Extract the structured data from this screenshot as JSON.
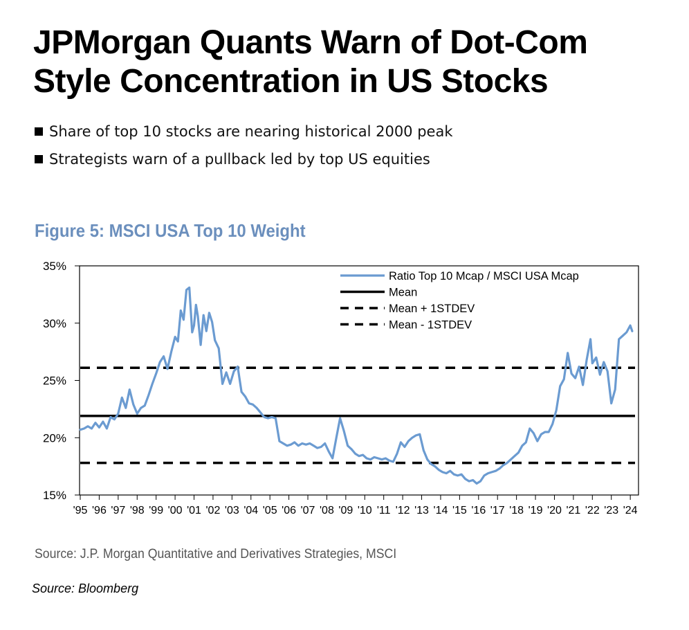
{
  "headline": "JPMorgan Quants Warn of Dot-Com Style Concentration in US Stocks",
  "bullets": [
    "Share of top 10 stocks are nearing historical 2000 peak",
    "Strategists warn of a pullback led by top US equities"
  ],
  "figure_source": "Source: J.P. Morgan Quantitative and Derivatives Strategies, MSCI",
  "credit": "Source: Bloomberg",
  "colors": {
    "series": "#6b9bd1",
    "title": "#6b8fbd",
    "lines": "#000000"
  },
  "chart_data": {
    "type": "line",
    "title": "Figure 5: MSCI USA Top 10 Weight",
    "xlabel": "",
    "ylabel": "",
    "x_ticks": [
      "'95",
      "'96",
      "'97",
      "'98",
      "'99",
      "'00",
      "'01",
      "'02",
      "'03",
      "'04",
      "'05",
      "'06",
      "'07",
      "'08",
      "'09",
      "'10",
      "'11",
      "'12",
      "'13",
      "'14",
      "'15",
      "'16",
      "'17",
      "'18",
      "'19",
      "'20",
      "'21",
      "'22",
      "'23",
      "'24"
    ],
    "xlim": [
      1995.0,
      2024.25
    ],
    "y_ticks": [
      15,
      20,
      25,
      30,
      35
    ],
    "y_tick_labels": [
      "15%",
      "20%",
      "25%",
      "30%",
      "35%"
    ],
    "ylim": [
      15,
      35
    ],
    "grid": false,
    "legend": "top-right",
    "series": [
      {
        "name": "Ratio Top 10 Mcap / MSCI USA Mcap",
        "style": "solid",
        "x": [
          1995.0,
          1995.2,
          1995.4,
          1995.6,
          1995.8,
          1996.0,
          1996.2,
          1996.4,
          1996.6,
          1996.8,
          1997.0,
          1997.2,
          1997.4,
          1997.6,
          1997.8,
          1998.0,
          1998.2,
          1998.4,
          1998.6,
          1998.8,
          1999.0,
          1999.2,
          1999.4,
          1999.6,
          1999.8,
          2000.0,
          2000.15,
          2000.3,
          2000.45,
          2000.6,
          2000.75,
          2000.9,
          2001.0,
          2001.1,
          2001.2,
          2001.35,
          2001.5,
          2001.65,
          2001.8,
          2001.95,
          2002.1,
          2002.3,
          2002.5,
          2002.7,
          2002.9,
          2003.1,
          2003.3,
          2003.5,
          2003.7,
          2003.9,
          2004.1,
          2004.3,
          2004.5,
          2004.7,
          2004.9,
          2005.1,
          2005.3,
          2005.5,
          2005.7,
          2005.9,
          2006.1,
          2006.3,
          2006.5,
          2006.7,
          2006.9,
          2007.1,
          2007.3,
          2007.5,
          2007.7,
          2007.9,
          2008.1,
          2008.3,
          2008.5,
          2008.7,
          2008.9,
          2009.1,
          2009.3,
          2009.5,
          2009.7,
          2009.9,
          2010.1,
          2010.3,
          2010.5,
          2010.7,
          2010.9,
          2011.1,
          2011.3,
          2011.5,
          2011.7,
          2011.9,
          2012.1,
          2012.3,
          2012.5,
          2012.7,
          2012.9,
          2013.1,
          2013.3,
          2013.5,
          2013.7,
          2013.9,
          2014.1,
          2014.3,
          2014.5,
          2014.7,
          2014.9,
          2015.1,
          2015.3,
          2015.5,
          2015.7,
          2015.9,
          2016.1,
          2016.3,
          2016.5,
          2016.7,
          2016.9,
          2017.1,
          2017.3,
          2017.5,
          2017.7,
          2017.9,
          2018.1,
          2018.3,
          2018.5,
          2018.7,
          2018.9,
          2019.1,
          2019.3,
          2019.5,
          2019.7,
          2019.9,
          2020.1,
          2020.3,
          2020.5,
          2020.7,
          2020.9,
          2021.1,
          2021.3,
          2021.5,
          2021.7,
          2021.9,
          2022.0,
          2022.2,
          2022.4,
          2022.6,
          2022.8,
          2023.0,
          2023.2,
          2023.4,
          2023.6,
          2023.8,
          2024.0,
          2024.1
        ],
        "y": [
          20.7,
          20.8,
          21.0,
          20.8,
          21.3,
          20.9,
          21.4,
          20.8,
          21.8,
          21.6,
          22.1,
          23.5,
          22.6,
          24.2,
          22.9,
          22.1,
          22.6,
          22.8,
          23.7,
          24.7,
          25.6,
          26.6,
          27.1,
          26.0,
          27.5,
          28.8,
          28.4,
          31.1,
          30.3,
          32.9,
          33.1,
          29.2,
          29.8,
          31.6,
          30.6,
          28.1,
          30.7,
          29.3,
          30.9,
          30.1,
          28.5,
          27.8,
          24.7,
          25.7,
          24.7,
          25.8,
          26.2,
          24.0,
          23.6,
          23.0,
          22.9,
          22.6,
          22.2,
          21.8,
          21.7,
          21.8,
          21.7,
          19.7,
          19.5,
          19.3,
          19.4,
          19.6,
          19.3,
          19.5,
          19.4,
          19.5,
          19.3,
          19.1,
          19.2,
          19.5,
          18.8,
          18.2,
          20.0,
          21.7,
          20.6,
          19.3,
          19.0,
          18.6,
          18.4,
          18.5,
          18.2,
          18.1,
          18.3,
          18.2,
          18.1,
          18.2,
          18.0,
          17.9,
          18.6,
          19.6,
          19.2,
          19.7,
          20.0,
          20.2,
          20.3,
          18.9,
          18.1,
          17.7,
          17.5,
          17.2,
          17.0,
          16.9,
          17.1,
          16.8,
          16.7,
          16.8,
          16.4,
          16.2,
          16.3,
          16.0,
          16.2,
          16.7,
          16.9,
          17.0,
          17.1,
          17.3,
          17.6,
          17.8,
          18.1,
          18.4,
          18.7,
          19.3,
          19.6,
          20.8,
          20.4,
          19.7,
          20.3,
          20.5,
          20.5,
          21.2,
          22.4,
          24.5,
          25.1,
          27.4,
          25.6,
          25.2,
          26.2,
          24.6,
          26.8,
          28.6,
          26.5,
          27.0,
          25.5,
          26.6,
          25.8,
          23.0,
          24.2,
          28.6,
          28.9,
          29.2,
          29.8,
          29.3
        ]
      },
      {
        "name": "Mean",
        "style": "solid-black",
        "value": 21.9
      },
      {
        "name": "Mean + 1STDEV",
        "style": "dashed-black",
        "value": 26.1
      },
      {
        "name": "Mean - 1STDEV",
        "style": "dashed-black",
        "value": 17.8
      }
    ]
  }
}
